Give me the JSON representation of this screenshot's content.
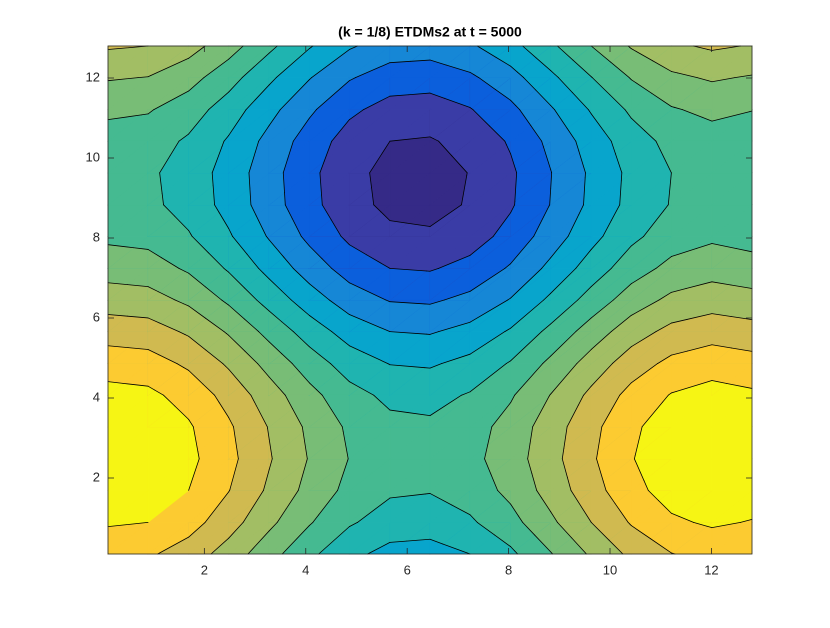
{
  "chart_data": {
    "type": "contourf",
    "title": "(k = 1/8) ETDMs2 at t = 5000",
    "xlim": [
      0.1,
      12.8
    ],
    "ylim": [
      0.1,
      12.8
    ],
    "xticks": [
      2,
      4,
      6,
      8,
      10,
      12
    ],
    "yticks": [
      2,
      4,
      6,
      8,
      10,
      12
    ],
    "levels": [
      -1.85,
      -1.5,
      -1.15,
      -0.8,
      -0.45,
      -0.1,
      0.25,
      0.6,
      0.95,
      1.3,
      1.65
    ],
    "colors": [
      "#352a87",
      "#3a3ca6",
      "#0b5fdc",
      "#1687d6",
      "#08a5cc",
      "#1fb4b0",
      "#45ba91",
      "#78bd76",
      "#a2be64",
      "#d0ba50",
      "#fccb31",
      "#f6f514"
    ],
    "x": [
      0.1,
      0.89,
      1.69,
      2.48,
      3.28,
      4.07,
      4.86,
      5.66,
      6.45,
      7.24,
      8.04,
      8.83,
      9.63,
      10.42,
      11.21,
      12.01,
      12.8
    ],
    "y": [
      0.1,
      0.89,
      1.69,
      2.48,
      3.28,
      4.07,
      4.86,
      5.66,
      6.45,
      7.24,
      8.04,
      8.83,
      9.63,
      10.42,
      11.21,
      12.01,
      12.8
    ],
    "z": [
      [
        1.39,
        1.35,
        1.14,
        0.8,
        0.38,
        -0.02,
        -0.36,
        -0.56,
        -0.59,
        -0.45,
        -0.17,
        0.23,
        0.65,
        1.03,
        1.29,
        1.4,
        1.33
      ],
      [
        1.69,
        1.65,
        1.44,
        1.1,
        0.68,
        0.28,
        -0.06,
        -0.26,
        -0.29,
        -0.15,
        0.13,
        0.53,
        0.95,
        1.33,
        1.59,
        1.7,
        1.63
      ],
      [
        1.9,
        1.86,
        1.65,
        1.31,
        0.89,
        0.49,
        0.15,
        -0.05,
        -0.08,
        0.06,
        0.34,
        0.74,
        1.16,
        1.54,
        1.8,
        1.91,
        1.84
      ],
      [
        1.99,
        1.95,
        1.74,
        1.4,
        0.98,
        0.58,
        0.24,
        0.04,
        0.01,
        0.15,
        0.43,
        0.83,
        1.25,
        1.63,
        1.89,
        2.0,
        1.93
      ],
      [
        1.94,
        1.9,
        1.69,
        1.35,
        0.93,
        0.53,
        0.19,
        -0.01,
        -0.04,
        0.1,
        0.38,
        0.78,
        1.2,
        1.58,
        1.84,
        1.95,
        1.88
      ],
      [
        1.77,
        1.73,
        1.52,
        1.18,
        0.76,
        0.36,
        0.02,
        -0.18,
        -0.21,
        -0.07,
        0.21,
        0.61,
        1.03,
        1.41,
        1.67,
        1.78,
        1.71
      ],
      [
        1.49,
        1.45,
        1.24,
        0.9,
        0.48,
        0.08,
        -0.26,
        -0.46,
        -0.49,
        -0.35,
        -0.07,
        0.33,
        0.75,
        1.13,
        1.39,
        1.5,
        1.43
      ],
      [
        1.15,
        1.11,
        0.9,
        0.56,
        0.14,
        -0.26,
        -0.6,
        -0.8,
        -0.83,
        -0.69,
        -0.41,
        -0.01,
        0.41,
        0.79,
        1.05,
        1.16,
        1.09
      ],
      [
        0.78,
        0.74,
        0.53,
        0.19,
        -0.23,
        -0.63,
        -0.97,
        -1.17,
        -1.2,
        -1.06,
        -0.78,
        -0.38,
        0.04,
        0.42,
        0.68,
        0.79,
        0.72
      ],
      [
        0.45,
        0.41,
        0.2,
        -0.14,
        -0.56,
        -0.96,
        -1.3,
        -1.5,
        -1.53,
        -1.39,
        -1.11,
        -0.71,
        -0.29,
        0.09,
        0.35,
        0.46,
        0.39
      ],
      [
        0.18,
        0.14,
        -0.07,
        -0.41,
        -0.83,
        -1.23,
        -1.57,
        -1.77,
        -1.8,
        -1.66,
        -1.38,
        -0.98,
        -0.56,
        -0.18,
        0.08,
        0.19,
        0.12
      ],
      [
        0.02,
        -0.02,
        -0.23,
        -0.57,
        -0.99,
        -1.39,
        -1.73,
        -1.93,
        -1.96,
        -1.82,
        -1.54,
        -1.14,
        -0.72,
        -0.34,
        -0.08,
        0.03,
        -0.04
      ],
      [
        0.0,
        -0.04,
        -0.25,
        -0.59,
        -1.01,
        -1.41,
        -1.75,
        -1.95,
        -1.98,
        -1.84,
        -1.56,
        -1.16,
        -0.74,
        -0.36,
        -0.1,
        0.01,
        -0.06
      ],
      [
        0.1,
        0.06,
        -0.15,
        -0.49,
        -0.91,
        -1.31,
        -1.65,
        -1.85,
        -1.88,
        -1.74,
        -1.46,
        -1.06,
        -0.64,
        -0.26,
        0.0,
        0.11,
        0.04
      ],
      [
        0.32,
        0.28,
        0.07,
        -0.27,
        -0.69,
        -1.09,
        -1.43,
        -1.63,
        -1.66,
        -1.52,
        -1.24,
        -0.84,
        -0.42,
        -0.04,
        0.22,
        0.33,
        0.26
      ],
      [
        0.63,
        0.59,
        0.38,
        0.04,
        -0.38,
        -0.78,
        -1.12,
        -1.32,
        -1.35,
        -1.21,
        -0.93,
        -0.53,
        -0.11,
        0.27,
        0.53,
        0.64,
        0.57
      ],
      [
        0.99,
        0.95,
        0.74,
        0.4,
        -0.02,
        -0.42,
        -0.76,
        -0.96,
        -0.99,
        -0.85,
        -0.57,
        -0.17,
        0.25,
        0.63,
        0.89,
        1.0,
        0.93
      ]
    ]
  }
}
